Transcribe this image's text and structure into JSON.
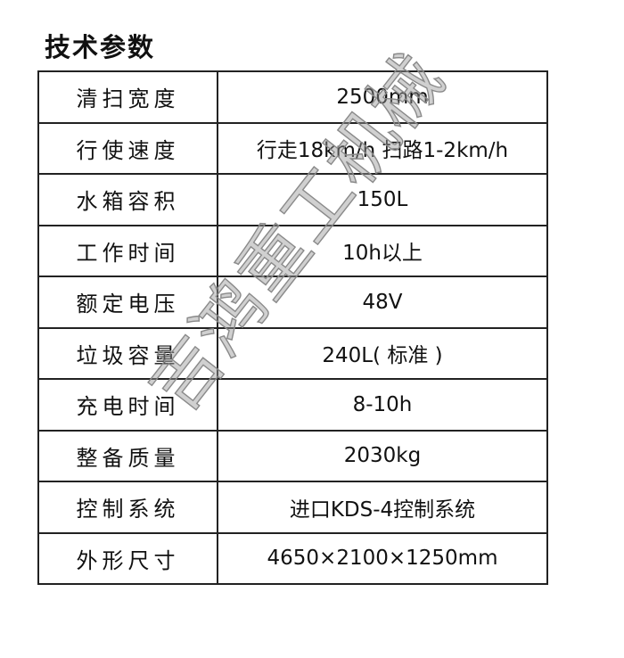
{
  "title": "技术参数",
  "rows": [
    {
      "label": "清扫宽度",
      "value": "2500mm"
    },
    {
      "label": "行使速度",
      "value": "行走18km/h  扫路1-2km/h"
    },
    {
      "label": "水箱容积",
      "value": "150L"
    },
    {
      "label": "工作时间",
      "value": "10h以上"
    },
    {
      "label": "额定电压",
      "value": "48V"
    },
    {
      "label": "垃圾容量",
      "value": "240L( 标准 )"
    },
    {
      "label": "充电时间",
      "value": "8-10h"
    },
    {
      "label": "整备质量",
      "value": "2030kg"
    },
    {
      "label": "控制系统",
      "value": "进口KDS-4控制系统"
    },
    {
      "label": "外形尺寸",
      "value": "4650×2100×1250mm"
    }
  ],
  "watermark": "吉鸿重工机械"
}
